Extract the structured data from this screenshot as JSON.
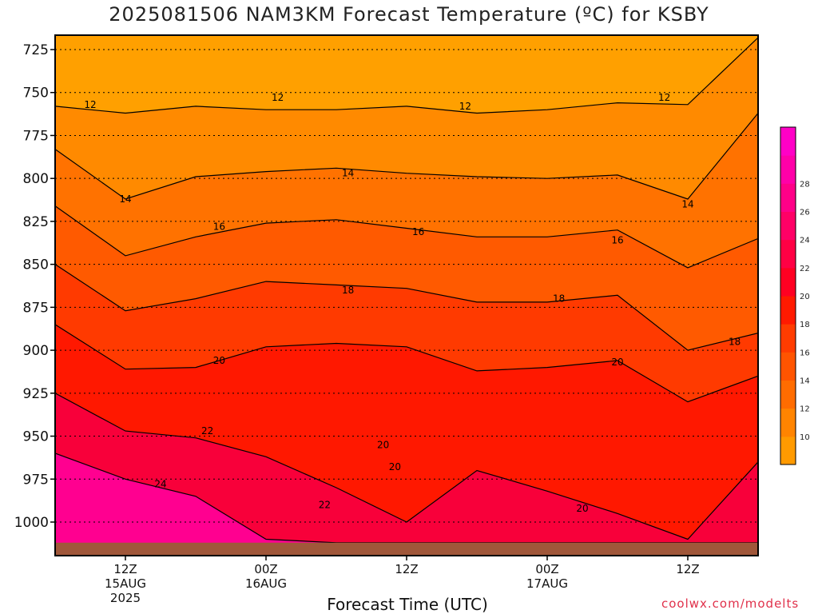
{
  "page": {
    "title": "2025081506 NAM3KM Forecast Temperature (ºC) for KSBY",
    "credit": "coolwx.com/modelts"
  },
  "chart_data": {
    "type": "heatmap",
    "title": "2025081506 NAM3KM Forecast Temperature (ºC) for KSBY",
    "xlabel": "Forecast Time (UTC)",
    "ylabel": "",
    "x_hours": [
      0,
      6,
      12,
      18,
      24,
      30,
      36,
      42,
      48,
      54,
      60
    ],
    "xlim": [
      0,
      60
    ],
    "x_ticks": [
      {
        "hour": 6,
        "lines": [
          "12Z",
          "15AUG",
          "2025"
        ]
      },
      {
        "hour": 18,
        "lines": [
          "00Z",
          "16AUG"
        ]
      },
      {
        "hour": 30,
        "lines": [
          "12Z"
        ]
      },
      {
        "hour": 42,
        "lines": [
          "00Z",
          "17AUG"
        ]
      },
      {
        "hour": 54,
        "lines": [
          "12Z"
        ]
      }
    ],
    "y_pressure_levels": [
      "725",
      "750",
      "775",
      "800",
      "825",
      "850",
      "875",
      "900",
      "925",
      "950",
      "975",
      "1000"
    ],
    "ylim": [
      1013,
      717
    ],
    "grid": true,
    "surface_pressure": 1012,
    "isotherms": [
      {
        "value": 12,
        "pressure": [
          758,
          762,
          758,
          760,
          760,
          758,
          762,
          760,
          756,
          757,
          718
        ]
      },
      {
        "value": 14,
        "pressure": [
          783,
          812,
          799,
          796,
          794,
          797,
          799,
          800,
          798,
          812,
          762
        ]
      },
      {
        "value": 16,
        "pressure": [
          816,
          845,
          834,
          826,
          824,
          829,
          834,
          834,
          830,
          852,
          835
        ]
      },
      {
        "value": 18,
        "pressure": [
          850,
          877,
          870,
          860,
          862,
          864,
          872,
          872,
          868,
          900,
          890
        ]
      },
      {
        "value": 20,
        "pressure": [
          885,
          911,
          910,
          898,
          896,
          898,
          912,
          910,
          906,
          930,
          915
        ]
      },
      {
        "value": 22,
        "pressure": [
          925,
          947,
          951,
          962,
          980,
          1000,
          970,
          982,
          995,
          1010,
          965
        ]
      },
      {
        "value": 24,
        "pressure": [
          960,
          975,
          985,
          1010,
          1012,
          1012,
          1012,
          1012,
          1012,
          1012,
          1012
        ]
      }
    ],
    "contour_labels": [
      {
        "value": "12",
        "hour": 3,
        "pressure": 757
      },
      {
        "value": "12",
        "hour": 19,
        "pressure": 753
      },
      {
        "value": "12",
        "hour": 35,
        "pressure": 758
      },
      {
        "value": "12",
        "hour": 52,
        "pressure": 753
      },
      {
        "value": "14",
        "hour": 6,
        "pressure": 812
      },
      {
        "value": "14",
        "hour": 25,
        "pressure": 797
      },
      {
        "value": "14",
        "hour": 54,
        "pressure": 815
      },
      {
        "value": "16",
        "hour": 14,
        "pressure": 828
      },
      {
        "value": "16",
        "hour": 31,
        "pressure": 831
      },
      {
        "value": "16",
        "hour": 48,
        "pressure": 836
      },
      {
        "value": "18",
        "hour": 25,
        "pressure": 865
      },
      {
        "value": "18",
        "hour": 43,
        "pressure": 870
      },
      {
        "value": "18",
        "hour": 58,
        "pressure": 895
      },
      {
        "value": "20",
        "hour": 14,
        "pressure": 906
      },
      {
        "value": "20",
        "hour": 48,
        "pressure": 907
      },
      {
        "value": "20",
        "hour": 28,
        "pressure": 955
      },
      {
        "value": "20",
        "hour": 29,
        "pressure": 968
      },
      {
        "value": "20",
        "hour": 45,
        "pressure": 992
      },
      {
        "value": "22",
        "hour": 13,
        "pressure": 947
      },
      {
        "value": "22",
        "hour": 23,
        "pressure": 990
      },
      {
        "value": "24",
        "hour": 9,
        "pressure": 978
      }
    ],
    "colorbar": {
      "ticks": [
        "10",
        "12",
        "14",
        "16",
        "18",
        "20",
        "22",
        "24",
        "26",
        "28"
      ],
      "colors": [
        "#ff9a00",
        "#ff8400",
        "#ff6c00",
        "#ff5400",
        "#ff3c00",
        "#ff1a00",
        "#ff0022",
        "#ff0044",
        "#ff0066",
        "#ff0088",
        "#ff00a8",
        "#ff00c6"
      ]
    },
    "band_colors": [
      "#ffa000",
      "#ff8a00",
      "#ff7200",
      "#ff5a00",
      "#ff3a00",
      "#ff1800",
      "#f8003a",
      "#f70b5c",
      "#ff0090"
    ],
    "ground_color": "#a0573a"
  }
}
